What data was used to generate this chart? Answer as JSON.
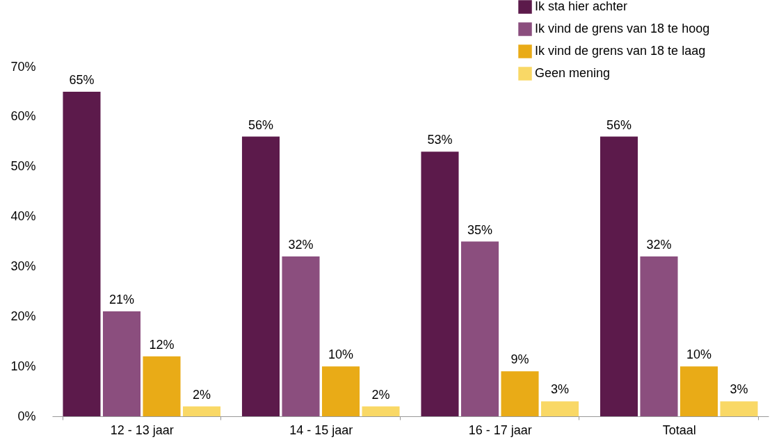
{
  "chart_data": {
    "type": "bar",
    "categories": [
      "12 - 13 jaar",
      "14 - 15 jaar",
      "16 - 17 jaar",
      "Totaal"
    ],
    "series": [
      {
        "name": "Ik sta hier achter",
        "color": "#5c1a4b",
        "values": [
          65,
          56,
          53,
          56
        ],
        "value_labels": [
          "65%",
          "56%",
          "53%",
          "56%"
        ]
      },
      {
        "name": "Ik vind de grens van 18 te hoog",
        "color": "#8b4e7e",
        "values": [
          21,
          32,
          35,
          32
        ],
        "value_labels": [
          "21%",
          "32%",
          "35%",
          "32%"
        ]
      },
      {
        "name": "Ik vind de grens van 18 te laag",
        "color": "#e9ab17",
        "values": [
          12,
          10,
          9,
          10
        ],
        "value_labels": [
          "12%",
          "10%",
          "9%",
          "10%"
        ]
      },
      {
        "name": "Geen mening",
        "color": "#f9d866",
        "values": [
          2,
          2,
          3,
          3
        ],
        "value_labels": [
          "2%",
          "2%",
          "3%",
          "3%"
        ]
      }
    ],
    "ylim": [
      0,
      70
    ],
    "yticks": [
      {
        "value": 0,
        "label": "0%"
      },
      {
        "value": 10,
        "label": "10%"
      },
      {
        "value": 20,
        "label": "20%"
      },
      {
        "value": 30,
        "label": "30%"
      },
      {
        "value": 40,
        "label": "40%"
      },
      {
        "value": 50,
        "label": "50%"
      },
      {
        "value": 60,
        "label": "60%"
      },
      {
        "value": 70,
        "label": "70%"
      }
    ],
    "grid": false,
    "legend": "top right"
  }
}
